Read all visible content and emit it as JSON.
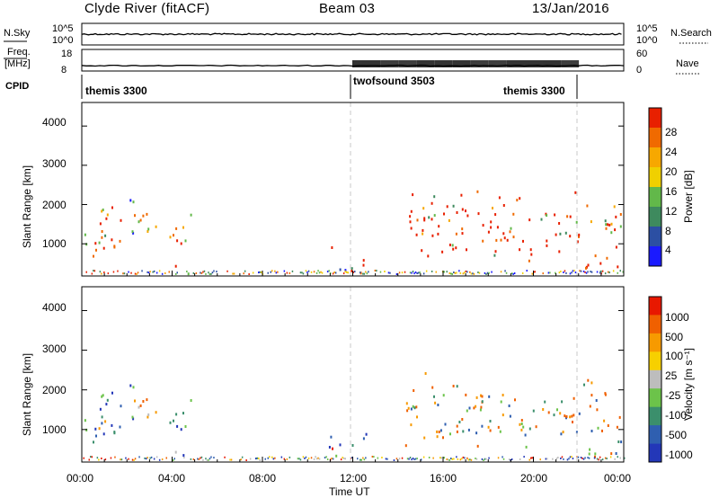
{
  "header": {
    "station": "Clyde River (fitACF)",
    "beam": "Beam 03",
    "date": "13/Jan/2016"
  },
  "panels": {
    "nsky_label": "N.Sky",
    "nsearch_label": "N.Search",
    "nsky_ticks": [
      "10^5",
      "10^0"
    ],
    "nsearch_ticks": [
      "10^5",
      "10^0"
    ],
    "freq_label_1": "Freq.",
    "freq_label_2": "[MHz]",
    "freq_ticks": [
      "18",
      "8"
    ],
    "nave_label": "Nave",
    "nave_ticks": [
      "60",
      "0"
    ],
    "cpid_label": "CPID",
    "cpid_segments": [
      {
        "label": "themis 3300",
        "start": 0.0,
        "end": 12.0
      },
      {
        "label": "twofsound 3503",
        "start": 12.0,
        "end": 22.0
      },
      {
        "label": "themis 3300",
        "start": 22.0,
        "end": 24.0
      }
    ]
  },
  "colors": {
    "power_scale": [
      "#1a1aff",
      "#2c4fa3",
      "#3e8a5e",
      "#62b84a",
      "#f0d000",
      "#f7a800",
      "#f06a00",
      "#e82000"
    ],
    "velocity_scale": [
      "#2337b8",
      "#2f5fb0",
      "#3b8f6c",
      "#6cc34a",
      "#bdbdbd",
      "#f7d000",
      "#f79a00",
      "#f06000",
      "#e81800"
    ],
    "marker_line": "#c8c8c8"
  },
  "chart_data": [
    {
      "type": "heatmap",
      "name_of_panel": "power",
      "ylabel": "Slant Range [km]",
      "yticks": [
        "4000",
        "3000",
        "2000",
        "1000"
      ],
      "ylim": [
        180,
        4600
      ],
      "x_range_hours": [
        0,
        24
      ],
      "colorbar_label": "Power [dB]",
      "colorbar_ticks": [
        "28",
        "24",
        "20",
        "16",
        "12",
        "8",
        "4"
      ],
      "vertical_markers_hours": [
        12.0,
        22.0
      ],
      "scatter_regions": [
        {
          "t0": 0.0,
          "t1": 1.75,
          "r0": 400,
          "r1": 2600,
          "level": "strong"
        },
        {
          "t0": 2.1,
          "t1": 3.4,
          "r0": 700,
          "r1": 2400,
          "level": "mixed"
        },
        {
          "t0": 3.3,
          "t1": 4.8,
          "r0": 800,
          "r1": 1800,
          "level": "strong"
        },
        {
          "t0": 4.1,
          "t1": 5.2,
          "r0": 200,
          "r1": 600,
          "level": "strong"
        },
        {
          "t0": 10.8,
          "t1": 12.6,
          "r0": 200,
          "r1": 1000,
          "level": "mixed"
        },
        {
          "t0": 14.3,
          "t1": 23.9,
          "r0": 500,
          "r1": 2500,
          "level": "strong"
        },
        {
          "t0": 21.5,
          "t1": 23.9,
          "r0": 200,
          "r1": 650,
          "level": "strong"
        }
      ]
    },
    {
      "type": "heatmap",
      "name_of_panel": "velocity",
      "ylabel": "Slant Range [km]",
      "yticks": [
        "4000",
        "3000",
        "2000",
        "1000"
      ],
      "ylim": [
        180,
        4600
      ],
      "x_range_hours": [
        0,
        24
      ],
      "xticks": [
        "00:00",
        "04:00",
        "08:00",
        "12:00",
        "16:00",
        "20:00",
        "00:00"
      ],
      "xlabel": "Time UT",
      "colorbar_label": "Velocity [m s⁻¹]",
      "colorbar_ticks": [
        "1000",
        "500",
        "100",
        "25",
        "-25",
        "-100",
        "-500",
        "-1000"
      ],
      "vertical_markers_hours": [
        12.0,
        22.0
      ],
      "scatter_regions": [
        {
          "t0": 0.0,
          "t1": 1.75,
          "r0": 400,
          "r1": 2600,
          "level": "toward"
        },
        {
          "t0": 2.1,
          "t1": 3.4,
          "r0": 700,
          "r1": 2400,
          "level": "mixed"
        },
        {
          "t0": 3.3,
          "t1": 4.8,
          "r0": 800,
          "r1": 1800,
          "level": "toward"
        },
        {
          "t0": 4.1,
          "t1": 5.2,
          "r0": 200,
          "r1": 600,
          "level": "mixed"
        },
        {
          "t0": 10.8,
          "t1": 12.6,
          "r0": 200,
          "r1": 1000,
          "level": "mixed"
        },
        {
          "t0": 14.3,
          "t1": 23.9,
          "r0": 500,
          "r1": 2500,
          "level": "away"
        },
        {
          "t0": 21.5,
          "t1": 23.9,
          "r0": 200,
          "r1": 650,
          "level": "away"
        }
      ]
    }
  ]
}
